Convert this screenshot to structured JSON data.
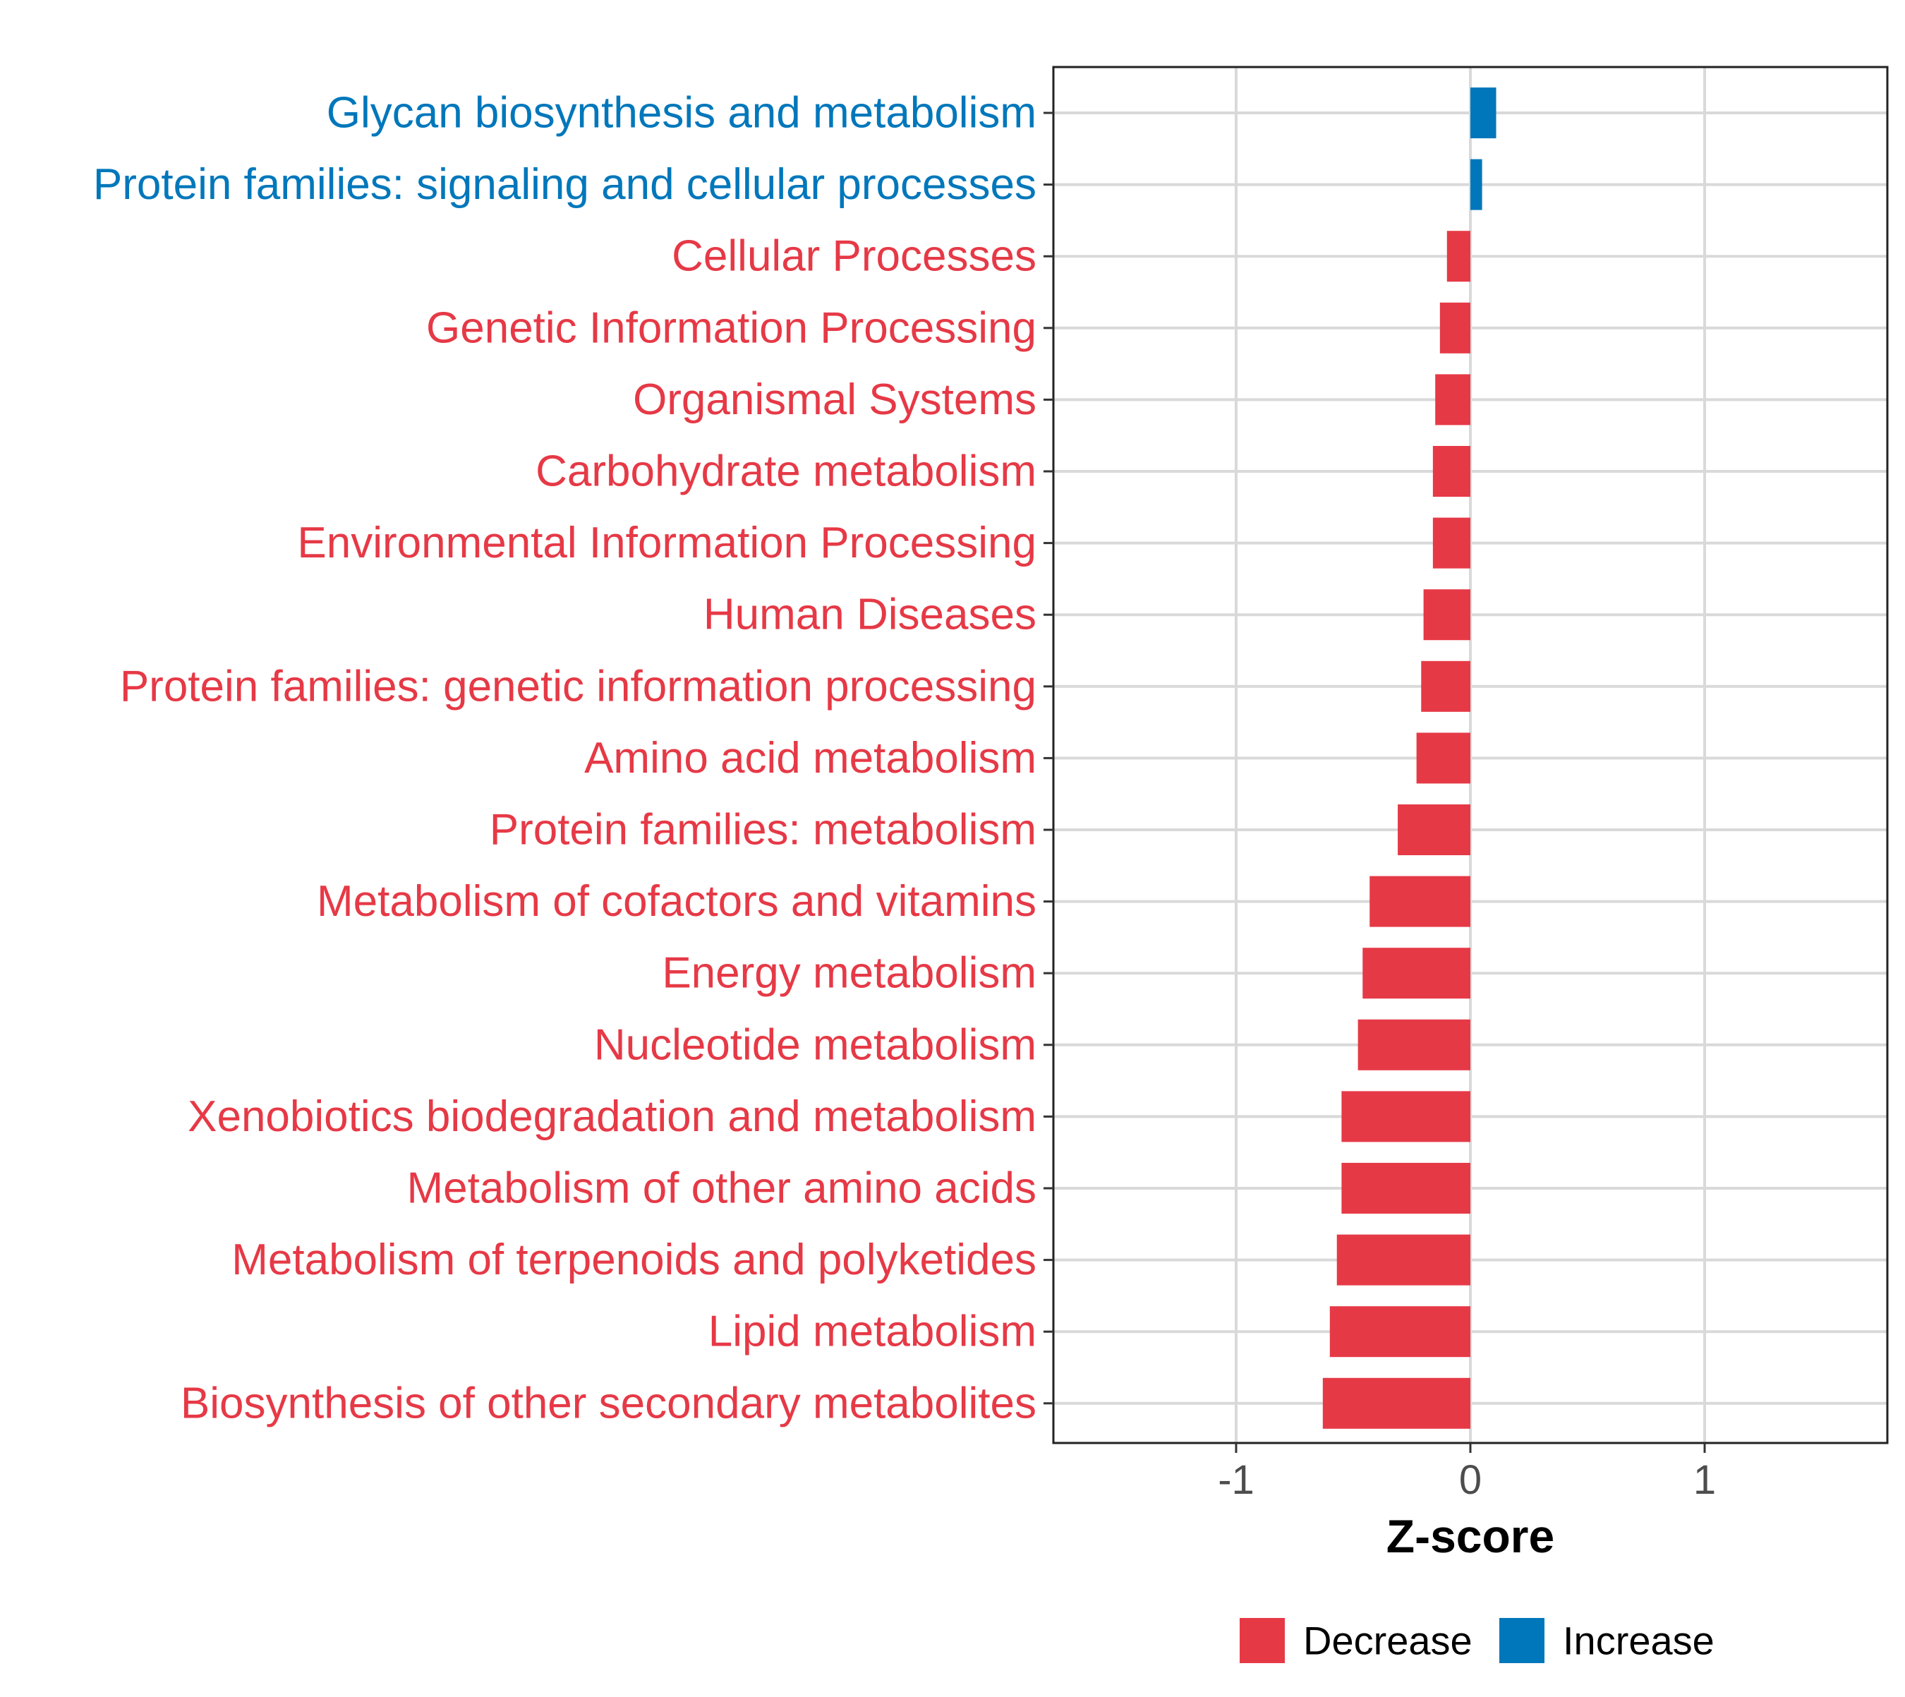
{
  "chart_data": {
    "type": "bar",
    "orientation": "horizontal",
    "title": "",
    "xlabel": "Z-score",
    "ylabel": "",
    "xlim": [
      -1.78,
      1.78
    ],
    "xticks": [
      -1,
      0,
      1
    ],
    "xtick_labels": [
      "-1",
      "0",
      "1"
    ],
    "grid": true,
    "legend_position": "bottom",
    "legend": [
      {
        "label": "Decrease",
        "color": "#E63946"
      },
      {
        "label": "Increase",
        "color": "#0077BB"
      }
    ],
    "categories": [
      "Glycan biosynthesis and metabolism",
      "Protein families: signaling and cellular processes",
      "Cellular Processes",
      "Genetic Information Processing",
      "Organismal Systems",
      "Carbohydrate metabolism",
      "Environmental Information Processing",
      "Human Diseases",
      "Protein families: genetic information processing",
      "Amino acid metabolism",
      "Protein families: metabolism",
      "Metabolism of cofactors and vitamins",
      "Energy metabolism",
      "Nucleotide metabolism",
      "Xenobiotics biodegradation and metabolism",
      "Metabolism of other amino acids",
      "Metabolism of terpenoids and polyketides",
      "Lipid metabolism",
      "Biosynthesis of other secondary metabolites"
    ],
    "values": [
      0.11,
      0.05,
      -0.1,
      -0.13,
      -0.15,
      -0.16,
      -0.16,
      -0.2,
      -0.21,
      -0.23,
      -0.31,
      -0.43,
      -0.46,
      -0.48,
      -0.55,
      -0.55,
      -0.57,
      -0.6,
      -0.63
    ],
    "groups": [
      "Increase",
      "Increase",
      "Decrease",
      "Decrease",
      "Decrease",
      "Decrease",
      "Decrease",
      "Decrease",
      "Decrease",
      "Decrease",
      "Decrease",
      "Decrease",
      "Decrease",
      "Decrease",
      "Decrease",
      "Decrease",
      "Decrease",
      "Decrease",
      "Decrease"
    ]
  }
}
